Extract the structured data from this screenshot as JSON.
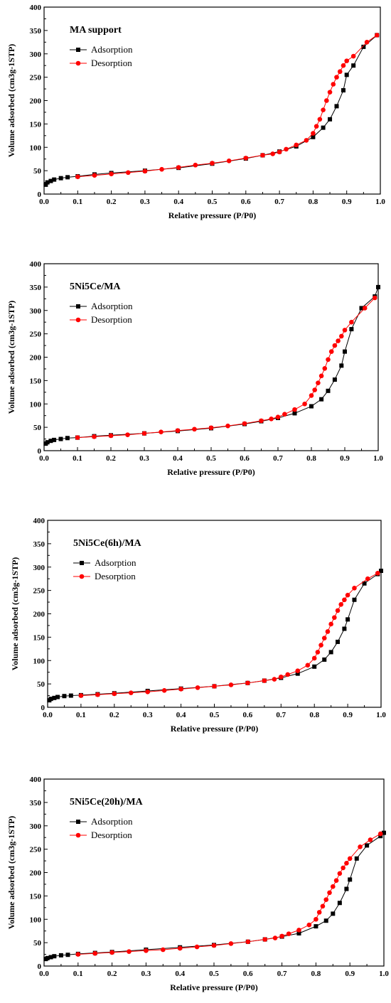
{
  "colors": {
    "adsorption": "#000000",
    "desorption": "#ff0000",
    "axes": "#000000"
  },
  "chart_data": [
    {
      "type": "line",
      "title": "MA support",
      "xlabel": "Relative pressure (P/P0)",
      "ylabel": "Volume adsorbed (cm3g-1STP)",
      "xlim": [
        0.0,
        1.0
      ],
      "ylim": [
        0,
        400
      ],
      "xticks": [
        "0.0",
        "0.1",
        "0.2",
        "0.3",
        "0.4",
        "0.5",
        "0.6",
        "0.7",
        "0.8",
        "0.9",
        "1.0"
      ],
      "yticks": [
        "0",
        "50",
        "100",
        "150",
        "200",
        "250",
        "300",
        "350",
        "400"
      ],
      "legend_position": "top-left",
      "series": [
        {
          "name": "Adsorption",
          "marker": "square",
          "x": [
            0.005,
            0.01,
            0.02,
            0.03,
            0.05,
            0.07,
            0.1,
            0.15,
            0.2,
            0.3,
            0.4,
            0.5,
            0.6,
            0.65,
            0.7,
            0.75,
            0.8,
            0.83,
            0.85,
            0.87,
            0.89,
            0.9,
            0.92,
            0.95,
            0.99
          ],
          "values": [
            20,
            25,
            28,
            31,
            34,
            36,
            38,
            42,
            45,
            50,
            56,
            65,
            76,
            83,
            91,
            102,
            122,
            142,
            160,
            188,
            222,
            255,
            275,
            315,
            340
          ]
        },
        {
          "name": "Desorption",
          "marker": "circle",
          "x": [
            0.99,
            0.96,
            0.92,
            0.9,
            0.89,
            0.88,
            0.87,
            0.86,
            0.85,
            0.84,
            0.83,
            0.82,
            0.81,
            0.8,
            0.78,
            0.75,
            0.72,
            0.7,
            0.68,
            0.65,
            0.6,
            0.55,
            0.5,
            0.45,
            0.4,
            0.35,
            0.3,
            0.25,
            0.2,
            0.15,
            0.1
          ],
          "values": [
            340,
            325,
            295,
            285,
            275,
            262,
            250,
            235,
            218,
            200,
            180,
            160,
            145,
            130,
            115,
            105,
            96,
            90,
            86,
            83,
            77,
            71,
            66,
            62,
            57,
            53,
            49,
            46,
            43,
            40,
            37
          ]
        }
      ]
    },
    {
      "type": "line",
      "title": "5Ni5Ce/MA",
      "xlabel": "Relative pressure (P/P0)",
      "ylabel": "Volume adsorbed (cm3g-1STP)",
      "xlim": [
        0.0,
        1.0
      ],
      "ylim": [
        0,
        400
      ],
      "xticks": [
        "0.0",
        "0.1",
        "0.2",
        "0.3",
        "0.4",
        "0.5",
        "0.6",
        "0.7",
        "0.8",
        "0.9",
        "1.0"
      ],
      "yticks": [
        "0",
        "50",
        "100",
        "150",
        "200",
        "250",
        "300",
        "350",
        "400"
      ],
      "legend_position": "top-left",
      "series": [
        {
          "name": "Adsorption",
          "marker": "square",
          "x": [
            0.005,
            0.01,
            0.02,
            0.03,
            0.05,
            0.07,
            0.1,
            0.15,
            0.2,
            0.3,
            0.4,
            0.5,
            0.6,
            0.65,
            0.7,
            0.75,
            0.8,
            0.83,
            0.85,
            0.87,
            0.89,
            0.9,
            0.92,
            0.95,
            0.99,
            1.0
          ],
          "values": [
            15,
            18,
            21,
            23,
            25,
            27,
            28,
            31,
            33,
            37,
            42,
            48,
            57,
            63,
            70,
            80,
            95,
            110,
            128,
            152,
            182,
            212,
            260,
            305,
            330,
            350
          ]
        },
        {
          "name": "Desorption",
          "marker": "circle",
          "x": [
            0.99,
            0.96,
            0.92,
            0.9,
            0.89,
            0.88,
            0.87,
            0.86,
            0.85,
            0.84,
            0.83,
            0.82,
            0.81,
            0.8,
            0.78,
            0.75,
            0.72,
            0.7,
            0.68,
            0.65,
            0.6,
            0.55,
            0.5,
            0.45,
            0.4,
            0.35,
            0.3,
            0.25,
            0.2,
            0.15,
            0.1
          ],
          "values": [
            327,
            305,
            275,
            258,
            245,
            235,
            225,
            212,
            195,
            176,
            160,
            145,
            130,
            118,
            100,
            88,
            78,
            72,
            68,
            64,
            58,
            53,
            49,
            46,
            43,
            40,
            37,
            34,
            32,
            30,
            28
          ]
        }
      ]
    },
    {
      "type": "line",
      "title": "5Ni5Ce(6h)/MA",
      "xlabel": "Relative pressure (P/P0)",
      "ylabel": "Volume adsorbed (cm3g-1STP)",
      "xlim": [
        0.0,
        1.0
      ],
      "ylim": [
        0,
        400
      ],
      "xticks": [
        "0.0",
        "0.1",
        "0.2",
        "0.3",
        "0.4",
        "0.5",
        "0.6",
        "0.7",
        "0.8",
        "0.9",
        "1.0"
      ],
      "yticks": [
        "0",
        "50",
        "100",
        "150",
        "200",
        "250",
        "300",
        "350",
        "400"
      ],
      "legend_position": "top-left",
      "series": [
        {
          "name": "Adsorption",
          "marker": "square",
          "x": [
            0.005,
            0.01,
            0.02,
            0.03,
            0.05,
            0.07,
            0.1,
            0.15,
            0.2,
            0.3,
            0.4,
            0.5,
            0.6,
            0.65,
            0.7,
            0.75,
            0.8,
            0.83,
            0.85,
            0.87,
            0.89,
            0.9,
            0.92,
            0.95,
            0.99,
            1.0
          ],
          "values": [
            15,
            18,
            20,
            22,
            24,
            25,
            26,
            28,
            30,
            35,
            40,
            45,
            52,
            57,
            63,
            72,
            87,
            102,
            118,
            140,
            168,
            188,
            230,
            265,
            285,
            292
          ]
        },
        {
          "name": "Desorption",
          "marker": "circle",
          "x": [
            0.99,
            0.96,
            0.92,
            0.9,
            0.89,
            0.88,
            0.87,
            0.86,
            0.85,
            0.84,
            0.83,
            0.82,
            0.81,
            0.8,
            0.78,
            0.75,
            0.72,
            0.7,
            0.68,
            0.65,
            0.6,
            0.55,
            0.5,
            0.45,
            0.4,
            0.35,
            0.3,
            0.25,
            0.2,
            0.15,
            0.1
          ],
          "values": [
            287,
            275,
            255,
            240,
            230,
            220,
            207,
            192,
            178,
            162,
            148,
            133,
            118,
            105,
            90,
            78,
            70,
            65,
            60,
            57,
            52,
            48,
            45,
            42,
            39,
            36,
            33,
            31,
            29,
            27,
            25
          ]
        }
      ]
    },
    {
      "type": "line",
      "title": "5Ni5Ce(20h)/MA",
      "xlabel": "Relative pressure (P/P0)",
      "ylabel": "Volume adsorbed (cm3g-1STP)",
      "xlim": [
        0.0,
        1.0
      ],
      "ylim": [
        0,
        400
      ],
      "xticks": [
        "0.0",
        "0.1",
        "0.2",
        "0.3",
        "0.4",
        "0.5",
        "0.6",
        "0.7",
        "0.8",
        "0.9",
        "1.0"
      ],
      "yticks": [
        "0",
        "50",
        "100",
        "150",
        "200",
        "250",
        "300",
        "350",
        "400"
      ],
      "legend_position": "top-left",
      "series": [
        {
          "name": "Adsorption",
          "marker": "square",
          "x": [
            0.005,
            0.01,
            0.02,
            0.03,
            0.05,
            0.07,
            0.1,
            0.15,
            0.2,
            0.3,
            0.4,
            0.5,
            0.6,
            0.65,
            0.7,
            0.75,
            0.8,
            0.83,
            0.85,
            0.87,
            0.89,
            0.9,
            0.92,
            0.95,
            0.99,
            1.0
          ],
          "values": [
            15,
            17,
            19,
            21,
            23,
            24,
            26,
            28,
            30,
            35,
            40,
            45,
            52,
            57,
            63,
            70,
            85,
            97,
            112,
            135,
            165,
            185,
            230,
            258,
            278,
            285
          ]
        },
        {
          "name": "Desorption",
          "marker": "circle",
          "x": [
            0.99,
            0.96,
            0.93,
            0.9,
            0.89,
            0.88,
            0.87,
            0.86,
            0.85,
            0.84,
            0.83,
            0.82,
            0.81,
            0.8,
            0.78,
            0.75,
            0.72,
            0.7,
            0.68,
            0.65,
            0.6,
            0.55,
            0.5,
            0.45,
            0.4,
            0.35,
            0.3,
            0.25,
            0.2,
            0.15,
            0.1
          ],
          "values": [
            283,
            270,
            255,
            230,
            220,
            210,
            198,
            183,
            170,
            157,
            142,
            128,
            115,
            100,
            88,
            77,
            69,
            64,
            60,
            57,
            52,
            48,
            44,
            41,
            38,
            35,
            33,
            31,
            29,
            27,
            25
          ]
        }
      ]
    }
  ]
}
